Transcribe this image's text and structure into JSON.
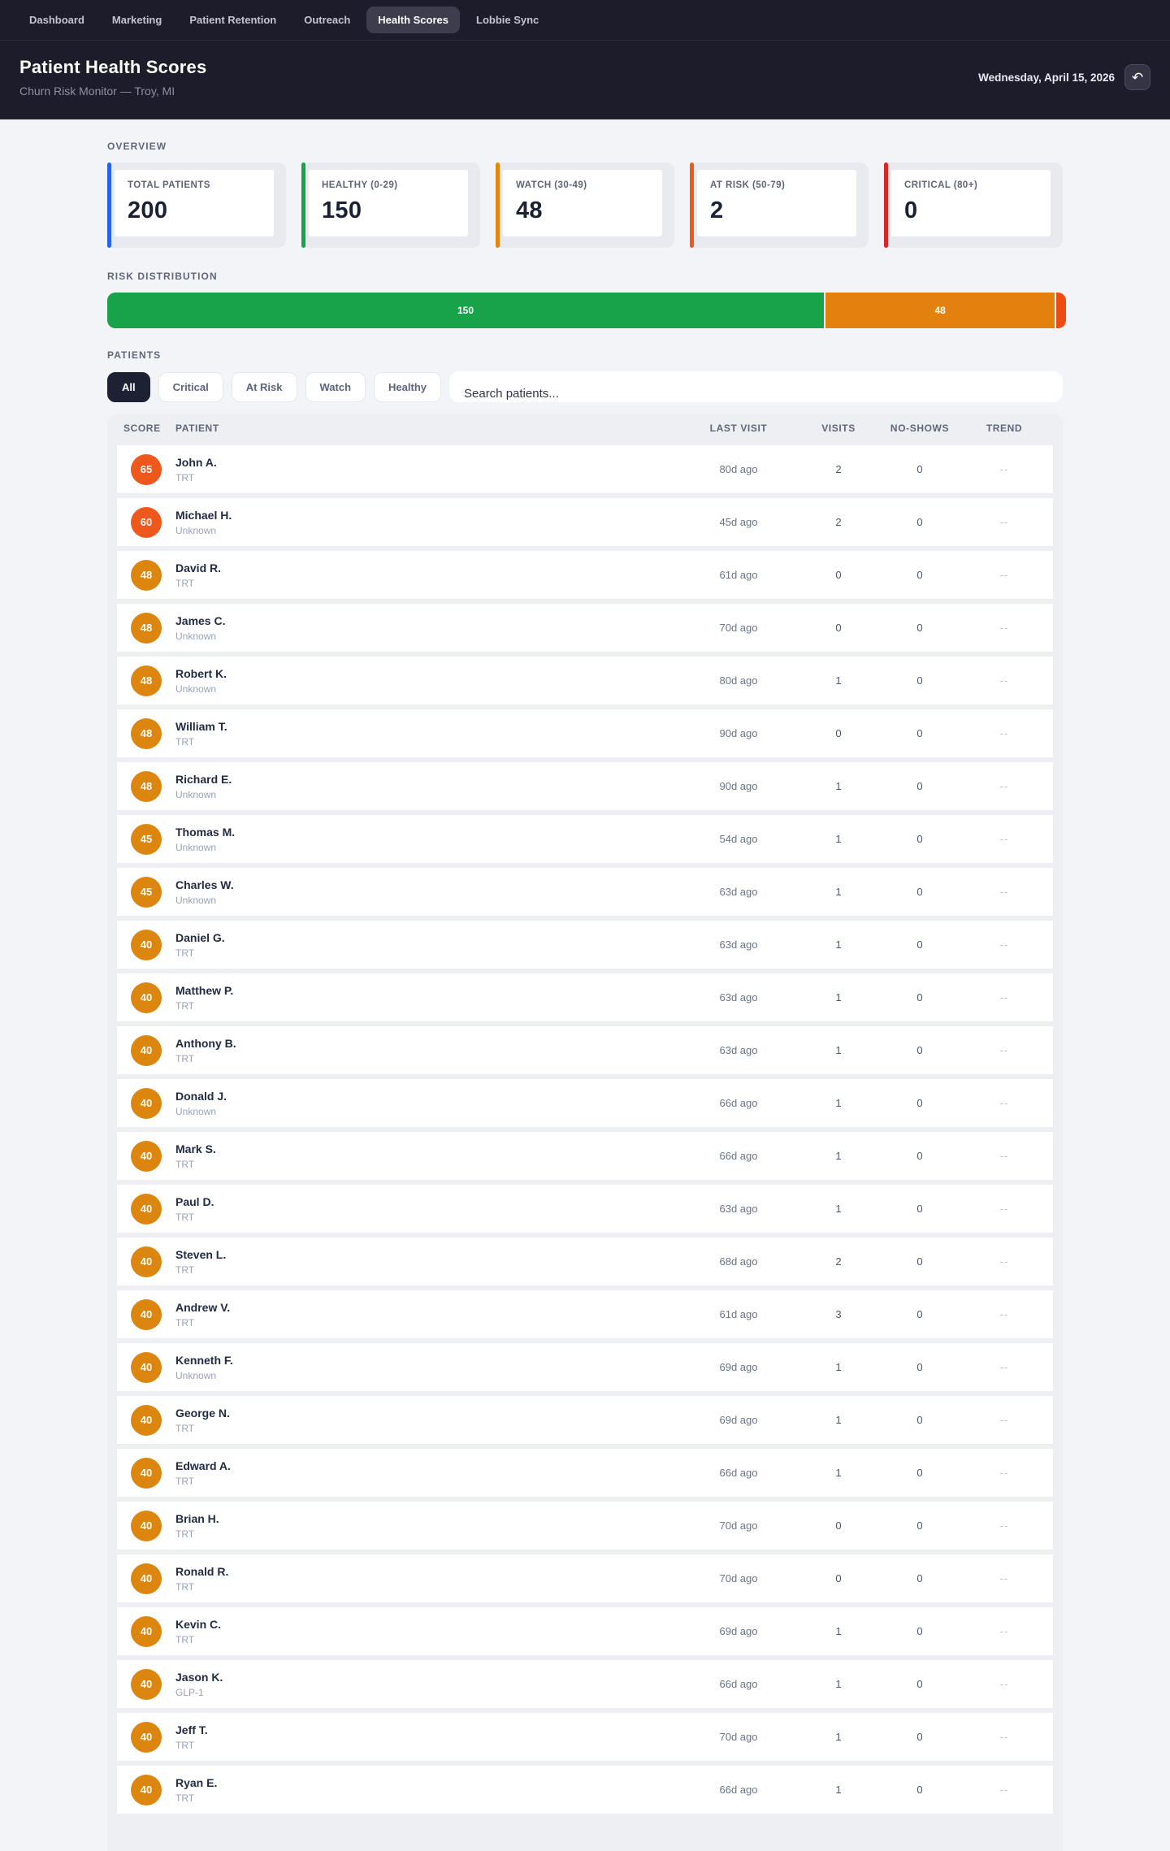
{
  "nav": {
    "items": [
      {
        "label": "Dashboard",
        "active": false
      },
      {
        "label": "Marketing",
        "active": false
      },
      {
        "label": "Patient Retention",
        "active": false
      },
      {
        "label": "Outreach",
        "active": false
      },
      {
        "label": "Health Scores",
        "active": true
      },
      {
        "label": "Lobbie Sync",
        "active": false
      }
    ]
  },
  "header": {
    "title": "Patient Health Scores",
    "subtitle": "Churn Risk Monitor — Troy, MI",
    "date": "Wednesday, April 15, 2026",
    "undo_icon_glyph": "↶"
  },
  "overview": {
    "label": "OVERVIEW",
    "cards": [
      {
        "label": "TOTAL PATIENTS",
        "value": "200",
        "accent": "#2563eb"
      },
      {
        "label": "HEALTHY (0-29)",
        "value": "150",
        "accent": "#16a34a"
      },
      {
        "label": "WATCH (30-49)",
        "value": "48",
        "accent": "#e2860d"
      },
      {
        "label": "AT RISK (50-79)",
        "value": "2",
        "accent": "#ef5a1b"
      },
      {
        "label": "CRITICAL (80+)",
        "value": "0",
        "accent": "#dc2626"
      }
    ]
  },
  "distribution": {
    "label": "RISK DISTRIBUTION",
    "total": 200,
    "segments": [
      {
        "name": "healthy",
        "count": 150,
        "display": "150",
        "color": "#18a34b",
        "pct": 75
      },
      {
        "name": "watch",
        "count": 48,
        "display": "48",
        "color": "#e2810e",
        "pct": 24
      },
      {
        "name": "at_risk",
        "count": 2,
        "display": "",
        "color": "#ee4d12",
        "pct": 1
      }
    ]
  },
  "patients": {
    "label": "PATIENTS",
    "filters": [
      {
        "label": "All",
        "active": true
      },
      {
        "label": "Critical",
        "active": false
      },
      {
        "label": "At Risk",
        "active": false
      },
      {
        "label": "Watch",
        "active": false
      },
      {
        "label": "Healthy",
        "active": false
      }
    ],
    "search_placeholder": "Search patients...",
    "table": {
      "columns": [
        "SCORE",
        "PATIENT",
        "LAST VISIT",
        "VISITS",
        "NO-SHOWS",
        "TREND"
      ],
      "score_tier_colors": {
        "at_risk": "#ee581c",
        "watch": "#dd860f"
      },
      "rows": [
        {
          "score": "65",
          "tier": "at_risk",
          "name": "John A.",
          "plan": "TRT",
          "last_visit": "80d ago",
          "visits": "2",
          "no_shows": "0",
          "trend": "--"
        },
        {
          "score": "60",
          "tier": "at_risk",
          "name": "Michael H.",
          "plan": "Unknown",
          "last_visit": "45d ago",
          "visits": "2",
          "no_shows": "0",
          "trend": "--"
        },
        {
          "score": "48",
          "tier": "watch",
          "name": "David R.",
          "plan": "TRT",
          "last_visit": "61d ago",
          "visits": "0",
          "no_shows": "0",
          "trend": "--"
        },
        {
          "score": "48",
          "tier": "watch",
          "name": "James C.",
          "plan": "Unknown",
          "last_visit": "70d ago",
          "visits": "0",
          "no_shows": "0",
          "trend": "--"
        },
        {
          "score": "48",
          "tier": "watch",
          "name": "Robert K.",
          "plan": "Unknown",
          "last_visit": "80d ago",
          "visits": "1",
          "no_shows": "0",
          "trend": "--"
        },
        {
          "score": "48",
          "tier": "watch",
          "name": "William T.",
          "plan": "TRT",
          "last_visit": "90d ago",
          "visits": "0",
          "no_shows": "0",
          "trend": "--"
        },
        {
          "score": "48",
          "tier": "watch",
          "name": "Richard E.",
          "plan": "Unknown",
          "last_visit": "90d ago",
          "visits": "1",
          "no_shows": "0",
          "trend": "--"
        },
        {
          "score": "45",
          "tier": "watch",
          "name": "Thomas M.",
          "plan": "Unknown",
          "last_visit": "54d ago",
          "visits": "1",
          "no_shows": "0",
          "trend": "--"
        },
        {
          "score": "45",
          "tier": "watch",
          "name": "Charles W.",
          "plan": "Unknown",
          "last_visit": "63d ago",
          "visits": "1",
          "no_shows": "0",
          "trend": "--"
        },
        {
          "score": "40",
          "tier": "watch",
          "name": "Daniel G.",
          "plan": "TRT",
          "last_visit": "63d ago",
          "visits": "1",
          "no_shows": "0",
          "trend": "--"
        },
        {
          "score": "40",
          "tier": "watch",
          "name": "Matthew P.",
          "plan": "TRT",
          "last_visit": "63d ago",
          "visits": "1",
          "no_shows": "0",
          "trend": "--"
        },
        {
          "score": "40",
          "tier": "watch",
          "name": "Anthony B.",
          "plan": "TRT",
          "last_visit": "63d ago",
          "visits": "1",
          "no_shows": "0",
          "trend": "--"
        },
        {
          "score": "40",
          "tier": "watch",
          "name": "Donald J.",
          "plan": "Unknown",
          "last_visit": "66d ago",
          "visits": "1",
          "no_shows": "0",
          "trend": "--"
        },
        {
          "score": "40",
          "tier": "watch",
          "name": "Mark S.",
          "plan": "TRT",
          "last_visit": "66d ago",
          "visits": "1",
          "no_shows": "0",
          "trend": "--"
        },
        {
          "score": "40",
          "tier": "watch",
          "name": "Paul D.",
          "plan": "TRT",
          "last_visit": "63d ago",
          "visits": "1",
          "no_shows": "0",
          "trend": "--"
        },
        {
          "score": "40",
          "tier": "watch",
          "name": "Steven L.",
          "plan": "TRT",
          "last_visit": "68d ago",
          "visits": "2",
          "no_shows": "0",
          "trend": "--"
        },
        {
          "score": "40",
          "tier": "watch",
          "name": "Andrew V.",
          "plan": "TRT",
          "last_visit": "61d ago",
          "visits": "3",
          "no_shows": "0",
          "trend": "--"
        },
        {
          "score": "40",
          "tier": "watch",
          "name": "Kenneth F.",
          "plan": "Unknown",
          "last_visit": "69d ago",
          "visits": "1",
          "no_shows": "0",
          "trend": "--"
        },
        {
          "score": "40",
          "tier": "watch",
          "name": "George N.",
          "plan": "TRT",
          "last_visit": "69d ago",
          "visits": "1",
          "no_shows": "0",
          "trend": "--"
        },
        {
          "score": "40",
          "tier": "watch",
          "name": "Edward A.",
          "plan": "TRT",
          "last_visit": "66d ago",
          "visits": "1",
          "no_shows": "0",
          "trend": "--"
        },
        {
          "score": "40",
          "tier": "watch",
          "name": "Brian H.",
          "plan": "TRT",
          "last_visit": "70d ago",
          "visits": "0",
          "no_shows": "0",
          "trend": "--"
        },
        {
          "score": "40",
          "tier": "watch",
          "name": "Ronald R.",
          "plan": "TRT",
          "last_visit": "70d ago",
          "visits": "0",
          "no_shows": "0",
          "trend": "--"
        },
        {
          "score": "40",
          "tier": "watch",
          "name": "Kevin C.",
          "plan": "TRT",
          "last_visit": "69d ago",
          "visits": "1",
          "no_shows": "0",
          "trend": "--"
        },
        {
          "score": "40",
          "tier": "watch",
          "name": "Jason K.",
          "plan": "GLP-1",
          "last_visit": "66d ago",
          "visits": "1",
          "no_shows": "0",
          "trend": "--"
        },
        {
          "score": "40",
          "tier": "watch",
          "name": "Jeff T.",
          "plan": "TRT",
          "last_visit": "70d ago",
          "visits": "1",
          "no_shows": "0",
          "trend": "--"
        },
        {
          "score": "40",
          "tier": "watch",
          "name": "Ryan E.",
          "plan": "TRT",
          "last_visit": "66d ago",
          "visits": "1",
          "no_shows": "0",
          "trend": "--"
        }
      ]
    }
  }
}
